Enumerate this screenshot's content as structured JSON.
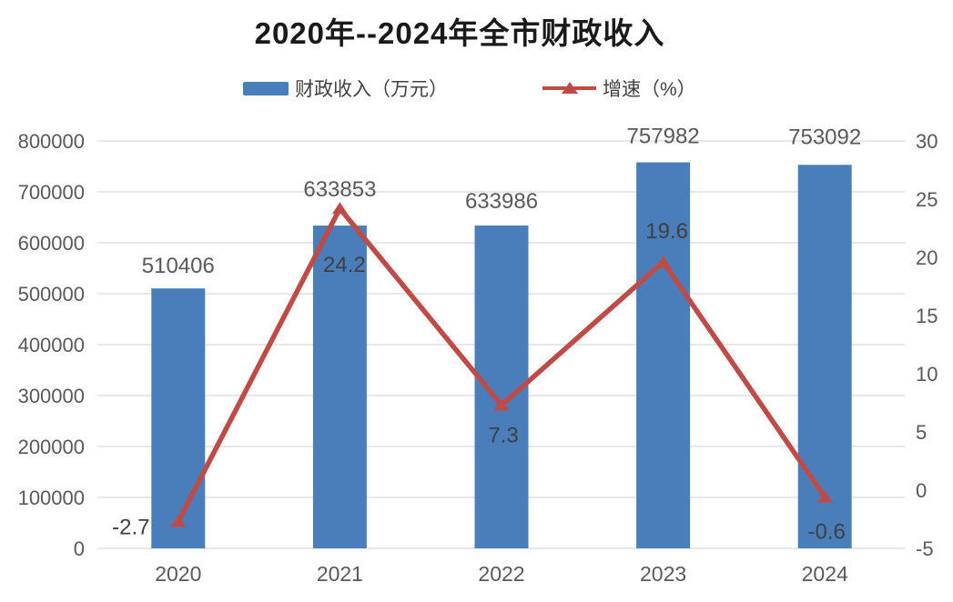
{
  "title": "2020年--2024年全市财政收入",
  "legend": {
    "revenue_label": "财政收入（万元）",
    "growth_label": "增速（%）"
  },
  "chart_data": {
    "type": "combo_bar_line",
    "title": "2020年--2024年全市财政收入",
    "categories": [
      "2020",
      "2021",
      "2022",
      "2023",
      "2024"
    ],
    "series": [
      {
        "name": "财政收入（万元）",
        "type": "bar",
        "axis": "left",
        "color": "#4a7ebb",
        "values": [
          510406,
          633853,
          633986,
          757982,
          753092
        ],
        "data_labels": [
          "510406",
          "633853",
          "633986",
          "757982",
          "753092"
        ]
      },
      {
        "name": "增速（%）",
        "type": "line",
        "axis": "right",
        "color": "#bf4b47",
        "marker": "triangle-up",
        "values": [
          -2.7,
          24.2,
          7.3,
          19.6,
          -0.6
        ],
        "data_labels": [
          "-2.7",
          "24.2",
          "7.3",
          "19.6",
          "-0.6"
        ]
      }
    ],
    "left_axis": {
      "min": 0,
      "max": 800000,
      "step": 100000,
      "tick_labels": [
        "800000",
        "700000",
        "600000",
        "500000",
        "400000",
        "300000",
        "200000",
        "100000",
        "0"
      ]
    },
    "right_axis": {
      "min": -5,
      "max": 30,
      "step": 5,
      "tick_labels": [
        "30",
        "25",
        "20",
        "15",
        "10",
        "5",
        "0",
        "-5"
      ]
    },
    "gridlines": "horizontal",
    "legend_position": "top"
  },
  "colors": {
    "bar": "#4a7ebb",
    "line": "#bf4b47",
    "gridline": "#d9d9d9",
    "axis_tick_text": "#595959",
    "category_text": "#595959",
    "bar_label_text": "#595959",
    "line_label_text": "#3f3f3f",
    "title_text": "#1a1a1a",
    "legend_text": "#404040",
    "background": "#ffffff"
  }
}
